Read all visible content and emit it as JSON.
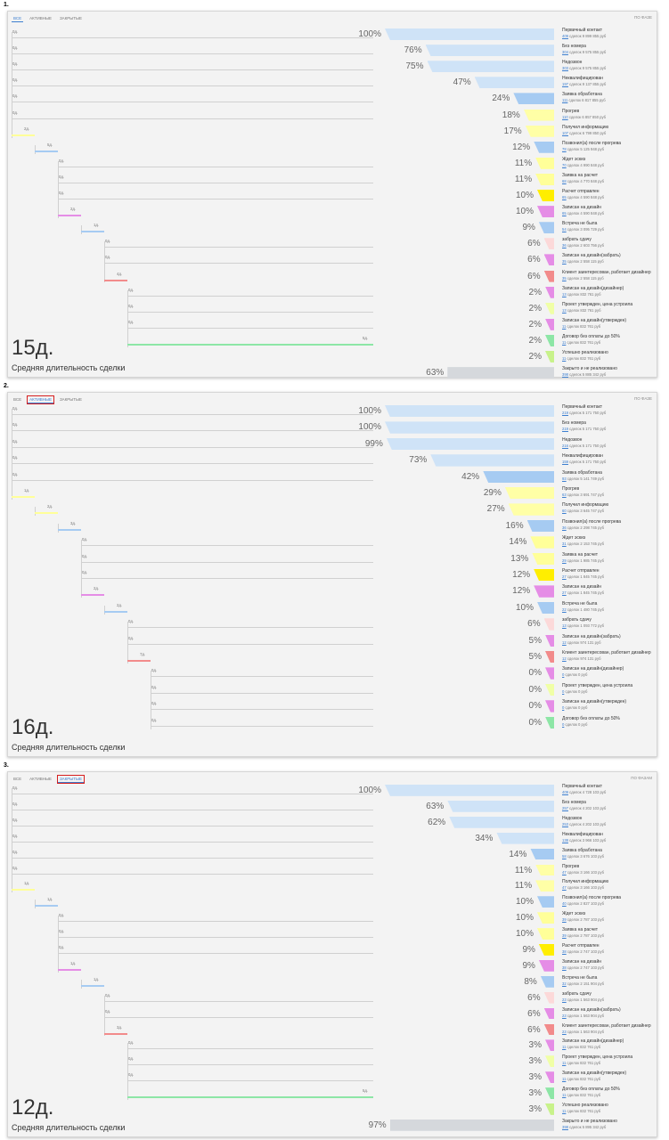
{
  "panels": [
    {
      "index_label": "1.",
      "tabs": [
        {
          "label": "ВСЕ",
          "active": true,
          "boxed": false
        },
        {
          "label": "АКТИВНЫЕ",
          "active": false,
          "boxed": false
        },
        {
          "label": "ЗАКРЫТЫЕ",
          "active": false,
          "boxed": false
        }
      ],
      "corner_label": "ПО ФАЗЕ",
      "duration": "15д.",
      "duration_label": "Средняя длительность сделки",
      "stages": [
        {
          "name": "Первичный контакт",
          "count": "409",
          "sum": "сделок 9 899 855 руб",
          "pct": "100%",
          "fraction": 1.0,
          "color": "#cfe3f7",
          "depth": 0,
          "days": "0д."
        },
        {
          "name": "Без номера",
          "count": "304",
          "sum": "сделок 9 575 855 руб",
          "pct": "76%",
          "fraction": 0.76,
          "color": "#cfe3f7",
          "depth": 0,
          "days": "0д."
        },
        {
          "name": "Недозвон",
          "count": "303",
          "sum": "сделок 9 575 855 руб",
          "pct": "75%",
          "fraction": 0.75,
          "color": "#cfe3f7",
          "depth": 0,
          "days": "0д."
        },
        {
          "name": "Неквалифицирован",
          "count": "197",
          "sum": "сделок 9 137 855 руб",
          "pct": "47%",
          "fraction": 0.47,
          "color": "#cfe3f7",
          "depth": 0,
          "days": "0д."
        },
        {
          "name": "Заявка обработана",
          "count": "111",
          "sum": "сделок 6 817 855 руб",
          "pct": "24%",
          "fraction": 0.24,
          "color": "#a6cbf2",
          "depth": 0,
          "days": "0д."
        },
        {
          "name": "Прогрев",
          "count": "110",
          "sum": "сделок 6 857 850 руб",
          "pct": "18%",
          "fraction": 0.18,
          "color": "#ffffa6",
          "depth": 0,
          "days": "0д."
        },
        {
          "name": "Получил информацию",
          "count": "107",
          "sum": "сделок 6 799 850 руб",
          "pct": "17%",
          "fraction": 0.17,
          "color": "#ffffa6",
          "depth": 0,
          "days": "2д.",
          "line": "#ffff99"
        },
        {
          "name": "Позвонил(а) после прогрева",
          "count": "78",
          "sum": "сделок 5 125 948 руб",
          "pct": "12%",
          "fraction": 0.12,
          "color": "#a6cbf2",
          "depth": 1,
          "days": "5д.",
          "line": "#a6cbf2"
        },
        {
          "name": "Ждет эскиз",
          "count": "70",
          "sum": "сделок 4 990 848 руб",
          "pct": "11%",
          "fraction": 0.11,
          "color": "#ffff99",
          "depth": 2,
          "days": "0д."
        },
        {
          "name": "Заявка на расчет",
          "count": "68",
          "sum": "сделок 4 770 848 руб",
          "pct": "11%",
          "fraction": 0.11,
          "color": "#ffff99",
          "depth": 2,
          "days": "0д."
        },
        {
          "name": "Расчет отправлен",
          "count": "65",
          "sum": "сделок 4 590 848 руб",
          "pct": "10%",
          "fraction": 0.1,
          "color": "#ffee00",
          "depth": 2,
          "days": "0д."
        },
        {
          "name": "Записан на дизайн",
          "count": "65",
          "sum": "сделок 4 590 848 руб",
          "pct": "10%",
          "fraction": 0.1,
          "color": "#e58de6",
          "depth": 2,
          "days": "2д.",
          "line": "#e58de6"
        },
        {
          "name": "Встреча не была",
          "count": "54",
          "sum": "сделок 3 095 729 руб",
          "pct": "9%",
          "fraction": 0.09,
          "color": "#a6cbf2",
          "depth": 3,
          "days": "1д.",
          "line": "#a6cbf2"
        },
        {
          "name": "забрать сдачу",
          "count": "36",
          "sum": "сделок 2 603 756 руб",
          "pct": "6%",
          "fraction": 0.06,
          "color": "#fcd9d9",
          "depth": 4,
          "days": "0д."
        },
        {
          "name": "Записан на дизайн(забрать)",
          "count": "35",
          "sum": "сделок 2 558 115 руб",
          "pct": "6%",
          "fraction": 0.06,
          "color": "#e58de6",
          "depth": 4,
          "days": "0д."
        },
        {
          "name": "Клиент заинтересован, работает дизайнер",
          "count": "35",
          "sum": "сделок 2 558 115 руб",
          "pct": "6%",
          "fraction": 0.06,
          "color": "#f28b8b",
          "depth": 4,
          "days": "4д.",
          "line": "#f28b8b"
        },
        {
          "name": "Записан на дизайн(дизайнер)",
          "count": "13",
          "sum": "сделок 832 761 руб",
          "pct": "2%",
          "fraction": 0.02,
          "color": "#e58de6",
          "depth": 5,
          "days": "0д."
        },
        {
          "name": "Проект утвержден, цена устроила",
          "count": "13",
          "sum": "сделок 832 761 руб",
          "pct": "2%",
          "fraction": 0.02,
          "color": "#f0ffa6",
          "depth": 5,
          "days": "0д."
        },
        {
          "name": "Записан на дизайн(утвержден)",
          "count": "11",
          "sum": "сделок 832 761 руб",
          "pct": "2%",
          "fraction": 0.02,
          "color": "#e58de6",
          "depth": 5,
          "days": "0д."
        },
        {
          "name": "Договор без оплаты до 50%",
          "count": "11",
          "sum": "сделок 832 761 руб",
          "pct": "2%",
          "fraction": 0.02,
          "color": "#8de6a6",
          "depth": 5,
          "days": "5д.",
          "line": "#8de6a6"
        },
        {
          "name": "Успешно реализовано",
          "count": "11",
          "sum": "сделок 832 761 руб",
          "pct": "2%",
          "fraction": 0.02,
          "color": "#c8f28b",
          "depth": -1,
          "days": ""
        },
        {
          "name": "Закрыто и не реализовано",
          "count": "398",
          "sum": "сделок 5 885 342 руб",
          "pct": "63%",
          "fraction": 0.63,
          "color": "#d5d8dc",
          "depth": -1,
          "days": "",
          "closed": true
        }
      ]
    },
    {
      "index_label": "2.",
      "tabs": [
        {
          "label": "ВСЕ",
          "active": false,
          "boxed": false
        },
        {
          "label": "АКТИВНЫЕ",
          "active": true,
          "boxed": true
        },
        {
          "label": "ЗАКРЫТЫЕ",
          "active": false,
          "boxed": false
        }
      ],
      "corner_label": "ПО ФАЗЕ",
      "duration": "16д.",
      "duration_label": "Средняя длительность сделки",
      "stages": [
        {
          "name": "Первичный контакт",
          "count": "219",
          "sum": "сделок 5 171 750 руб",
          "pct": "100%",
          "fraction": 1.0,
          "color": "#cfe3f7",
          "depth": 0,
          "days": "0д."
        },
        {
          "name": "Без номера",
          "count": "219",
          "sum": "сделок 5 171 750 руб",
          "pct": "100%",
          "fraction": 1.0,
          "color": "#cfe3f7",
          "depth": 0,
          "days": "0д."
        },
        {
          "name": "Недозвон",
          "count": "216",
          "sum": "сделок 5 171 750 руб",
          "pct": "99%",
          "fraction": 0.99,
          "color": "#cfe3f7",
          "depth": 0,
          "days": "0д."
        },
        {
          "name": "Неквалифицирован",
          "count": "159",
          "sum": "сделок 5 171 750 руб",
          "pct": "73%",
          "fraction": 0.73,
          "color": "#cfe3f7",
          "depth": 0,
          "days": "0д."
        },
        {
          "name": "Заявка обработана",
          "count": "93",
          "sum": "сделок 5 141 749 руб",
          "pct": "42%",
          "fraction": 0.42,
          "color": "#a6cbf2",
          "depth": 0,
          "days": "0д."
        },
        {
          "name": "Прогрев",
          "count": "63",
          "sum": "сделок 3 691 747 руб",
          "pct": "29%",
          "fraction": 0.29,
          "color": "#ffffa6",
          "depth": 0,
          "days": "1д.",
          "line": "#ffff99"
        },
        {
          "name": "Получил информацию",
          "count": "60",
          "sum": "сделок 3 645 747 руб",
          "pct": "27%",
          "fraction": 0.27,
          "color": "#ffffa6",
          "depth": 1,
          "days": "2д.",
          "line": "#ffff99"
        },
        {
          "name": "Позвонил(а) после прогрева",
          "count": "36",
          "sum": "сделок 2 298 745 руб",
          "pct": "16%",
          "fraction": 0.16,
          "color": "#a6cbf2",
          "depth": 2,
          "days": "3д.",
          "line": "#a6cbf2"
        },
        {
          "name": "Ждет эскиз",
          "count": "31",
          "sum": "сделок 2 153 745 руб",
          "pct": "14%",
          "fraction": 0.14,
          "color": "#ffff99",
          "depth": 3,
          "days": "0д."
        },
        {
          "name": "Заявка на расчет",
          "count": "29",
          "sum": "сделок 1 985 745 руб",
          "pct": "13%",
          "fraction": 0.13,
          "color": "#ffff99",
          "depth": 3,
          "days": "0д."
        },
        {
          "name": "Расчет отправлен",
          "count": "27",
          "sum": "сделок 1 845 745 руб",
          "pct": "12%",
          "fraction": 0.12,
          "color": "#ffee00",
          "depth": 3,
          "days": "0д."
        },
        {
          "name": "Записан на дизайн",
          "count": "27",
          "sum": "сделок 1 845 745 руб",
          "pct": "12%",
          "fraction": 0.12,
          "color": "#e58de6",
          "depth": 3,
          "days": "2д.",
          "line": "#e58de6"
        },
        {
          "name": "Встреча не была",
          "count": "22",
          "sum": "сделок 1 480 745 руб",
          "pct": "10%",
          "fraction": 0.1,
          "color": "#a6cbf2",
          "depth": 4,
          "days": "2д.",
          "line": "#a6cbf2"
        },
        {
          "name": "забрать сдачу",
          "count": "13",
          "sum": "сделок 1 093 772 руб",
          "pct": "6%",
          "fraction": 0.06,
          "color": "#fcd9d9",
          "depth": 5,
          "days": "0д."
        },
        {
          "name": "Записан на дизайн(забрать)",
          "count": "12",
          "sum": "сделок 974 131 руб",
          "pct": "5%",
          "fraction": 0.05,
          "color": "#e58de6",
          "depth": 5,
          "days": "0д."
        },
        {
          "name": "Клиент заинтересован, работает дизайнер",
          "count": "12",
          "sum": "сделок 974 131 руб",
          "pct": "5%",
          "fraction": 0.05,
          "color": "#f28b8b",
          "depth": 5,
          "days": "7д.",
          "line": "#f28b8b"
        },
        {
          "name": "Записан на дизайн(дизайнер)",
          "count": "0",
          "sum": "сделок 0 руб",
          "pct": "0%",
          "fraction": 0.0,
          "color": "#e58de6",
          "depth": 6,
          "days": "0д."
        },
        {
          "name": "Проект утвержден, цена устроила",
          "count": "0",
          "sum": "сделок 0 руб",
          "pct": "0%",
          "fraction": 0.0,
          "color": "#f0ffa6",
          "depth": 6,
          "days": "0д."
        },
        {
          "name": "Записан на дизайн(утвержден)",
          "count": "0",
          "sum": "сделок 0 руб",
          "pct": "0%",
          "fraction": 0.0,
          "color": "#e58de6",
          "depth": 6,
          "days": "0д."
        },
        {
          "name": "Договор без оплаты до 50%",
          "count": "0",
          "sum": "сделок 0 руб",
          "pct": "0%",
          "fraction": 0.0,
          "color": "#8de6a6",
          "depth": 6,
          "days": "0д."
        }
      ]
    },
    {
      "index_label": "3.",
      "tabs": [
        {
          "label": "ВСЕ",
          "active": false,
          "boxed": false
        },
        {
          "label": "АКТИВНЫЕ",
          "active": false,
          "boxed": false
        },
        {
          "label": "ЗАКРЫТЫЕ",
          "active": true,
          "boxed": true
        }
      ],
      "corner_label": "ПО ФАЗАМ",
      "duration": "12д.",
      "duration_label": "Средняя длительность сделки",
      "stages": [
        {
          "name": "Первичный контакт",
          "count": "409",
          "sum": "сделок 4 728 103 руб",
          "pct": "100%",
          "fraction": 1.0,
          "color": "#cfe3f7",
          "depth": 0,
          "days": "0д."
        },
        {
          "name": "Без номера",
          "count": "257",
          "sum": "сделок 4 202 103 руб",
          "pct": "63%",
          "fraction": 0.63,
          "color": "#cfe3f7",
          "depth": 0,
          "days": "0д."
        },
        {
          "name": "Недозвон",
          "count": "253",
          "sum": "сделок 4 202 103 руб",
          "pct": "62%",
          "fraction": 0.62,
          "color": "#cfe3f7",
          "depth": 0,
          "days": "0д."
        },
        {
          "name": "Неквалифицирован",
          "count": "138",
          "sum": "сделок 3 966 103 руб",
          "pct": "34%",
          "fraction": 0.34,
          "color": "#cfe3f7",
          "depth": 0,
          "days": "0д."
        },
        {
          "name": "Заявка обработана",
          "count": "58",
          "sum": "сделок 3 676 103 руб",
          "pct": "14%",
          "fraction": 0.14,
          "color": "#a6cbf2",
          "depth": 0,
          "days": "0д."
        },
        {
          "name": "Прогрев",
          "count": "47",
          "sum": "сделок 3 166 103 руб",
          "pct": "11%",
          "fraction": 0.11,
          "color": "#ffffa6",
          "depth": 0,
          "days": "0д."
        },
        {
          "name": "Получил информацию",
          "count": "47",
          "sum": "сделок 3 166 103 руб",
          "pct": "11%",
          "fraction": 0.11,
          "color": "#ffffa6",
          "depth": 0,
          "days": "1д.",
          "line": "#ffff99"
        },
        {
          "name": "Позвонил(а) после прогрева",
          "count": "40",
          "sum": "сделок 2 827 103 руб",
          "pct": "10%",
          "fraction": 0.1,
          "color": "#a6cbf2",
          "depth": 1,
          "days": "1д.",
          "line": "#a6cbf2"
        },
        {
          "name": "Ждет эскиз",
          "count": "39",
          "sum": "сделок 2 787 103 руб",
          "pct": "10%",
          "fraction": 0.1,
          "color": "#ffff99",
          "depth": 2,
          "days": "0д."
        },
        {
          "name": "Заявка на расчет",
          "count": "39",
          "sum": "сделок 2 787 103 руб",
          "pct": "10%",
          "fraction": 0.1,
          "color": "#ffff99",
          "depth": 2,
          "days": "0д."
        },
        {
          "name": "Расчет отправлен",
          "count": "38",
          "sum": "сделок 2 747 103 руб",
          "pct": "9%",
          "fraction": 0.09,
          "color": "#ffee00",
          "depth": 2,
          "days": "0д."
        },
        {
          "name": "Записан на дизайн",
          "count": "38",
          "sum": "сделок 2 747 103 руб",
          "pct": "9%",
          "fraction": 0.09,
          "color": "#e58de6",
          "depth": 2,
          "days": "1д.",
          "line": "#e58de6"
        },
        {
          "name": "Встреча не была",
          "count": "32",
          "sum": "сделок 2 151 904 руб",
          "pct": "8%",
          "fraction": 0.08,
          "color": "#a6cbf2",
          "depth": 3,
          "days": "1д.",
          "line": "#a6cbf2"
        },
        {
          "name": "забрать сдачу",
          "count": "23",
          "sum": "сделок 1 563 904 руб",
          "pct": "6%",
          "fraction": 0.06,
          "color": "#fcd9d9",
          "depth": 4,
          "days": "0д."
        },
        {
          "name": "Записан на дизайн(забрать)",
          "count": "23",
          "sum": "сделок 1 563 904 руб",
          "pct": "6%",
          "fraction": 0.06,
          "color": "#e58de6",
          "depth": 4,
          "days": "0д."
        },
        {
          "name": "Клиент заинтересован, работает дизайнер",
          "count": "23",
          "sum": "сделок 1 563 904 руб",
          "pct": "6%",
          "fraction": 0.06,
          "color": "#f28b8b",
          "depth": 4,
          "days": "3д.",
          "line": "#f28b8b"
        },
        {
          "name": "Записан на дизайн(дизайнер)",
          "count": "11",
          "sum": "сделок 832 761 руб",
          "pct": "3%",
          "fraction": 0.03,
          "color": "#e58de6",
          "depth": 5,
          "days": "0д."
        },
        {
          "name": "Проект утвержден, цена устроила",
          "count": "11",
          "sum": "сделок 832 761 руб",
          "pct": "3%",
          "fraction": 0.03,
          "color": "#f0ffa6",
          "depth": 5,
          "days": "0д."
        },
        {
          "name": "Записан на дизайн(утвержден)",
          "count": "11",
          "sum": "сделок 832 761 руб",
          "pct": "3%",
          "fraction": 0.03,
          "color": "#e58de6",
          "depth": 5,
          "days": "0д."
        },
        {
          "name": "Договор без оплаты до 50%",
          "count": "11",
          "sum": "сделок 832 761 руб",
          "pct": "3%",
          "fraction": 0.03,
          "color": "#8de6a6",
          "depth": 5,
          "days": "5д.",
          "line": "#8de6a6"
        },
        {
          "name": "Успешно реализовано",
          "count": "11",
          "sum": "сделок 832 761 руб",
          "pct": "3%",
          "fraction": 0.03,
          "color": "#c8f28b",
          "depth": -1,
          "days": ""
        },
        {
          "name": "Закрыто и не реализовано",
          "count": "398",
          "sum": "сделок 5 895 342 руб",
          "pct": "97%",
          "fraction": 0.97,
          "color": "#d5d8dc",
          "depth": -1,
          "days": "",
          "closed": true
        }
      ]
    }
  ]
}
